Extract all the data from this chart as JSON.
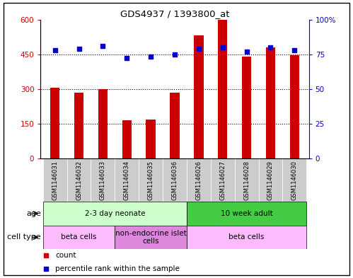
{
  "title": "GDS4937 / 1393800_at",
  "samples": [
    "GSM1146031",
    "GSM1146032",
    "GSM1146033",
    "GSM1146034",
    "GSM1146035",
    "GSM1146036",
    "GSM1146026",
    "GSM1146027",
    "GSM1146028",
    "GSM1146029",
    "GSM1146030"
  ],
  "counts": [
    305,
    283,
    300,
    163,
    168,
    283,
    530,
    600,
    440,
    480,
    445
  ],
  "percentiles_pct": [
    78,
    79,
    81,
    72,
    73,
    75,
    79,
    80,
    77,
    80,
    78
  ],
  "ylim_left": [
    0,
    600
  ],
  "ylim_right": [
    0,
    100
  ],
  "yticks_left": [
    0,
    150,
    300,
    450,
    600
  ],
  "ytick_labels_left": [
    "0",
    "150",
    "300",
    "450",
    "600"
  ],
  "yticks_right": [
    0,
    25,
    50,
    75,
    100
  ],
  "ytick_labels_right": [
    "0",
    "25",
    "50",
    "75",
    "100%"
  ],
  "bar_color": "#cc0000",
  "dot_color": "#0000cc",
  "age_groups": [
    {
      "label": "2-3 day neonate",
      "start": 0,
      "end": 6,
      "color": "#ccffcc"
    },
    {
      "label": "10 week adult",
      "start": 6,
      "end": 11,
      "color": "#44cc44"
    }
  ],
  "cell_type_groups": [
    {
      "label": "beta cells",
      "start": 0,
      "end": 3,
      "color": "#ffbbff"
    },
    {
      "label": "non-endocrine islet\ncells",
      "start": 3,
      "end": 6,
      "color": "#dd88dd"
    },
    {
      "label": "beta cells",
      "start": 6,
      "end": 11,
      "color": "#ffbbff"
    }
  ],
  "age_label": "age",
  "cell_type_label": "cell type",
  "legend_count_label": "count",
  "legend_pct_label": "percentile rank within the sample",
  "bar_width": 0.4,
  "xtick_bg_color": "#cccccc"
}
